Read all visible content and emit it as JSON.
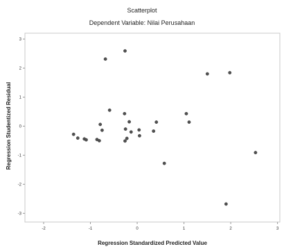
{
  "chart_data": {
    "type": "scatter",
    "title": "Scatterplot",
    "subtitle": "Dependent Variable: Nilai Perusahaan",
    "xlabel": "Regression Standardized Predicted Value",
    "ylabel": "Regression Studentized Residual",
    "xlim": [
      -2.4,
      3.05
    ],
    "ylim": [
      -3.3,
      3.2
    ],
    "xticks": [
      -2,
      -1,
      0,
      1,
      2,
      3
    ],
    "yticks": [
      3,
      2,
      1,
      0,
      -1,
      -2,
      -3
    ],
    "grid": false,
    "legend": "none",
    "marker_color": "#505050",
    "points": [
      {
        "x": -1.36,
        "y": -0.28
      },
      {
        "x": -1.27,
        "y": -0.41
      },
      {
        "x": -1.13,
        "y": -0.44
      },
      {
        "x": -1.09,
        "y": -0.47
      },
      {
        "x": -0.86,
        "y": -0.46
      },
      {
        "x": -0.81,
        "y": -0.5
      },
      {
        "x": -0.79,
        "y": 0.06
      },
      {
        "x": -0.75,
        "y": -0.14
      },
      {
        "x": -0.68,
        "y": 2.31
      },
      {
        "x": -0.59,
        "y": 0.55
      },
      {
        "x": -0.26,
        "y": 2.59
      },
      {
        "x": -0.27,
        "y": 0.43
      },
      {
        "x": -0.25,
        "y": -0.1
      },
      {
        "x": -0.26,
        "y": -0.51
      },
      {
        "x": -0.22,
        "y": -0.42
      },
      {
        "x": -0.17,
        "y": 0.15
      },
      {
        "x": -0.13,
        "y": -0.2
      },
      {
        "x": 0.04,
        "y": -0.13
      },
      {
        "x": 0.05,
        "y": -0.33
      },
      {
        "x": 0.35,
        "y": -0.17
      },
      {
        "x": 0.41,
        "y": 0.14
      },
      {
        "x": 0.58,
        "y": -1.28
      },
      {
        "x": 1.05,
        "y": 0.43
      },
      {
        "x": 1.11,
        "y": 0.14
      },
      {
        "x": 1.5,
        "y": 1.8
      },
      {
        "x": 1.9,
        "y": -2.68
      },
      {
        "x": 1.98,
        "y": 1.84
      },
      {
        "x": 2.53,
        "y": -0.91
      }
    ]
  }
}
